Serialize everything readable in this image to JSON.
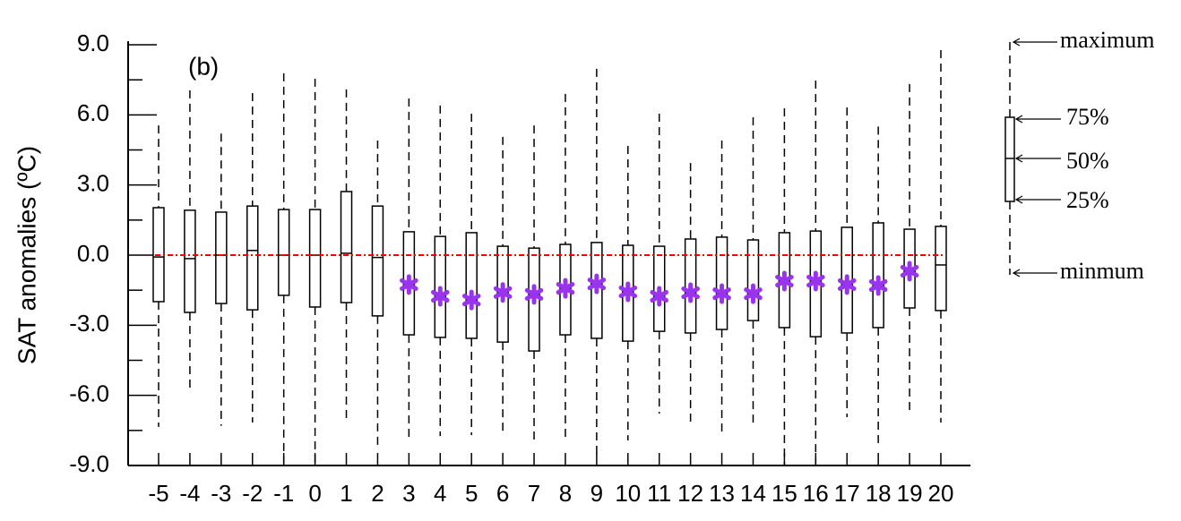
{
  "chart_data": {
    "type": "box",
    "y_label": "SAT anomalies (ºC)",
    "annotation": "(b)",
    "legend_labels": [
      "maximum",
      "75%",
      "50%",
      "25%",
      "minmum"
    ],
    "categories": [
      "-5",
      "-4",
      "-3",
      "-2",
      "-1",
      "0",
      "1",
      "2",
      "3",
      "4",
      "5",
      "6",
      "7",
      "8",
      "9",
      "10",
      "11",
      "12",
      "13",
      "14",
      "15",
      "16",
      "17",
      "18",
      "19",
      "20"
    ],
    "max": [
      5.55,
      7.05,
      5.2,
      6.93,
      7.78,
      7.55,
      7.09,
      4.9,
      6.7,
      6.4,
      6.05,
      5.06,
      5.55,
      6.9,
      7.97,
      4.67,
      6.05,
      3.94,
      4.9,
      5.9,
      6.28,
      7.47,
      6.32,
      5.5,
      7.32,
      8.77
    ],
    "q3": [
      2.03,
      1.92,
      1.84,
      2.1,
      1.95,
      1.95,
      2.72,
      2.1,
      1.0,
      0.8,
      0.96,
      0.38,
      0.3,
      0.46,
      0.54,
      0.42,
      0.38,
      0.69,
      0.77,
      0.65,
      0.96,
      1.03,
      1.19,
      1.38,
      1.11,
      1.23
    ],
    "median": [
      -0.08,
      -0.15,
      0,
      0.2,
      0,
      0,
      0.08,
      -0.1,
      -1.26,
      -1.76,
      -1.92,
      -1.6,
      -1.68,
      -1.42,
      -1.23,
      -1.57,
      -1.76,
      -1.61,
      -1.65,
      -1.65,
      -1.11,
      -1.11,
      -1.26,
      -1.3,
      -0.69,
      -0.42
    ],
    "q1": [
      -1.99,
      -2.45,
      -2.07,
      -2.34,
      -1.72,
      -2.22,
      -2.03,
      -2.6,
      -3.41,
      -3.52,
      -3.56,
      -3.72,
      -4.1,
      -3.41,
      -3.56,
      -3.68,
      -3.26,
      -3.33,
      -3.18,
      -2.8,
      -3.1,
      -3.49,
      -3.33,
      -3.1,
      -2.26,
      -2.37
    ],
    "min": [
      -7.35,
      -5.75,
      -7.3,
      -7.16,
      -9.0,
      -9.0,
      -7.16,
      -8.12,
      -7.85,
      -7.74,
      -7.7,
      -7.7,
      -8.12,
      -8.0,
      -8.62,
      -7.93,
      -6.78,
      -7.32,
      -7.7,
      -7.2,
      -9.0,
      -9.0,
      -6.93,
      -8.12,
      -6.63,
      -7.16
    ],
    "marker_values": [
      null,
      null,
      null,
      null,
      null,
      null,
      null,
      null,
      -1.26,
      -1.76,
      -1.92,
      -1.6,
      -1.68,
      -1.42,
      -1.23,
      -1.57,
      -1.76,
      -1.61,
      -1.65,
      -1.65,
      -1.11,
      -1.11,
      -1.26,
      -1.3,
      -0.69,
      null
    ],
    "marker_color": "#9933ee",
    "reference_line": 0,
    "reference_color": "#ff0000",
    "ylim": [
      -9,
      9
    ],
    "yticks": [
      {
        "value": -9,
        "label": "-9.0"
      },
      {
        "value": -6,
        "label": "-6.0"
      },
      {
        "value": -3,
        "label": "-3.0"
      },
      {
        "value": 0,
        "label": "0.0"
      },
      {
        "value": 3,
        "label": "3.0"
      },
      {
        "value": 6,
        "label": "6.0"
      },
      {
        "value": 9,
        "label": "9.0"
      }
    ],
    "minor_yticks": [
      -7.5,
      -4.5,
      -1.5,
      1.5,
      4.5,
      7.5
    ]
  }
}
